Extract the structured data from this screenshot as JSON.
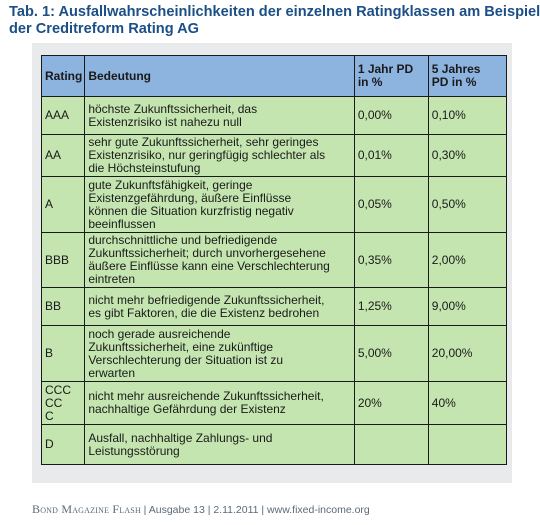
{
  "title": {
    "line1": "Tab. 1: Ausfallwahrscheinlichkeiten der einzelnen Ratingklassen am Beispiel",
    "line2": "der Creditreform Rating AG"
  },
  "table": {
    "headers": {
      "rating": "Rating",
      "bedeutung": "Bedeutung",
      "pd1_line1": "1 Jahr PD",
      "pd1_line2": "in %",
      "pd5_line1": "5 Jahres",
      "pd5_line2": "PD in %"
    },
    "rows": [
      {
        "rating": "AAA",
        "bedeutung": [
          "höchste Zukunftssicherheit, das",
          "Existenzrisiko ist nahezu null"
        ],
        "pd1": "0,00%",
        "pd5": "0,10%"
      },
      {
        "rating": "AA",
        "bedeutung": [
          "sehr gute Zukunftssicherheit, sehr geringes",
          "Existenzrisiko, nur geringfügig schlechter als",
          "die Höchsteinstufung"
        ],
        "pd1": "0,01%",
        "pd5": "0,30%"
      },
      {
        "rating": "A",
        "bedeutung": [
          "gute Zukunftsfähigkeit, geringe",
          "Existenzgefährdung, äußere Einflüsse",
          "können die Situation kurzfristig negativ",
          "beeinflussen"
        ],
        "pd1": "0,05%",
        "pd5": "0,50%"
      },
      {
        "rating": "BBB",
        "bedeutung": [
          "durchschnittliche und befriedigende",
          "Zukunftssicherheit; durch unvorhergesehene",
          "äußere Einflüsse kann eine Verschlechterung",
          "eintreten"
        ],
        "pd1": "0,35%",
        "pd5": "2,00%"
      },
      {
        "rating": "BB",
        "bedeutung": [
          "nicht mehr befriedigende Zukunftssicherheit,",
          "es gibt Faktoren, die die Existenz bedrohen"
        ],
        "pd1": "1,25%",
        "pd5": "9,00%"
      },
      {
        "rating": "B",
        "bedeutung": [
          "noch gerade ausreichende",
          "Zukunftssicherheit, eine zukünftige",
          "Verschlechterung der Situation ist zu",
          "erwarten"
        ],
        "pd1": "5,00%",
        "pd5": "20,00%"
      },
      {
        "rating_lines": [
          "CCC",
          "CC",
          "C"
        ],
        "bedeutung": [
          "nicht mehr ausreichende Zukunftssicherheit,",
          "nachhaltige Gefährdung der Existenz"
        ],
        "pd1": "20%",
        "pd5": "40%"
      },
      {
        "rating": "D",
        "bedeutung": [
          "Ausfall, nachhaltige Zahlungs- und",
          "Leistungsstörung"
        ],
        "pd1": "",
        "pd5": ""
      }
    ]
  },
  "footer": {
    "brand": "Bond Magazine Flash",
    "rest": "|  Ausgabe 13  |  2.11.2011  |  www.fixed-income.org"
  }
}
